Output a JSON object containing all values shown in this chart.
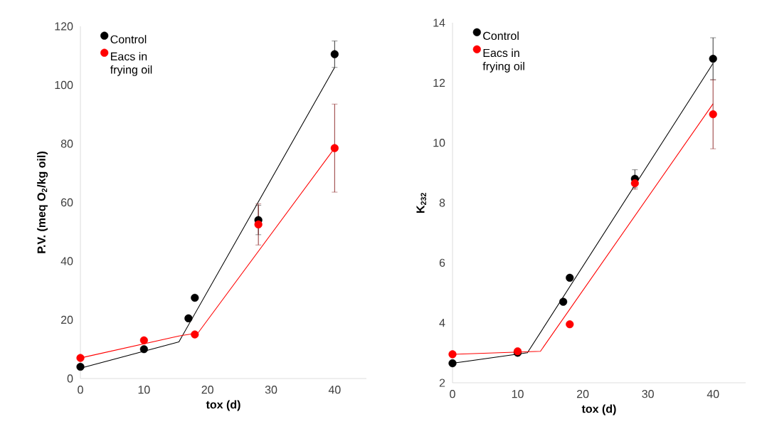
{
  "chart_data": [
    {
      "type": "scatter",
      "xlabel": "tox (d)",
      "ylabel": "P.V. (meq O$_{2}$/kg oil)",
      "xlim": [
        0,
        45
      ],
      "xticks": [
        0,
        10,
        20,
        30,
        40
      ],
      "ylim": [
        0,
        120
      ],
      "yticks": [
        0,
        20,
        40,
        60,
        80,
        100,
        120
      ],
      "grid": false,
      "legend": "top left",
      "series": [
        {
          "type": "line",
          "color": "#000000",
          "x": [
            0,
            15.5,
            40
          ],
          "values": [
            3.5,
            12.5,
            106
          ],
          "marker": "none"
        },
        {
          "type": "line",
          "color": "#ff0000",
          "x": [
            0,
            15.5,
            18.5,
            40
          ],
          "values": [
            7,
            14.5,
            15.5,
            78.5
          ],
          "marker": "none"
        },
        {
          "name": "Control",
          "color": "#000000",
          "marker": "circle",
          "x": [
            0,
            10,
            17,
            18,
            28,
            40
          ],
          "values": [
            4,
            10,
            20.5,
            27.5,
            54,
            110.5
          ],
          "errors": [
            null,
            null,
            null,
            null,
            5,
            4.5
          ]
        },
        {
          "name": "Eacs in frying oil",
          "color": "#ff0000",
          "marker": "circle",
          "x": [
            0,
            10,
            18,
            28,
            40
          ],
          "values": [
            7,
            13,
            15,
            52.5,
            78.5
          ],
          "errors": [
            null,
            null,
            null,
            7,
            15
          ]
        }
      ]
    },
    {
      "type": "scatter",
      "xlabel": "tox (d)",
      "ylabel": "K$_{232}$",
      "xlim": [
        0,
        45
      ],
      "xticks": [
        0,
        10,
        20,
        30,
        40
      ],
      "ylim": [
        2,
        14
      ],
      "yticks": [
        2,
        4,
        6,
        8,
        10,
        12,
        14
      ],
      "grid": false,
      "legend": "top left",
      "series": [
        {
          "type": "line",
          "color": "#000000",
          "x": [
            0,
            11.5,
            40
          ],
          "values": [
            2.65,
            3.0,
            12.65
          ],
          "marker": "none"
        },
        {
          "type": "line",
          "color": "#ff0000",
          "x": [
            0,
            13.5,
            40
          ],
          "values": [
            2.95,
            3.05,
            11.3
          ],
          "marker": "none"
        },
        {
          "name": "Control",
          "color": "#000000",
          "marker": "circle",
          "x": [
            0,
            10,
            17,
            18,
            28,
            40
          ],
          "values": [
            2.65,
            3.0,
            4.7,
            5.5,
            8.8,
            12.8
          ],
          "errors": [
            null,
            null,
            null,
            null,
            0.3,
            0.7
          ]
        },
        {
          "name": "Eacs in frying oil",
          "color": "#ff0000",
          "marker": "circle",
          "x": [
            0,
            10,
            18,
            28,
            40
          ],
          "values": [
            2.95,
            3.05,
            3.95,
            8.65,
            10.95
          ],
          "errors": [
            null,
            null,
            null,
            0.2,
            1.15
          ]
        }
      ]
    }
  ]
}
